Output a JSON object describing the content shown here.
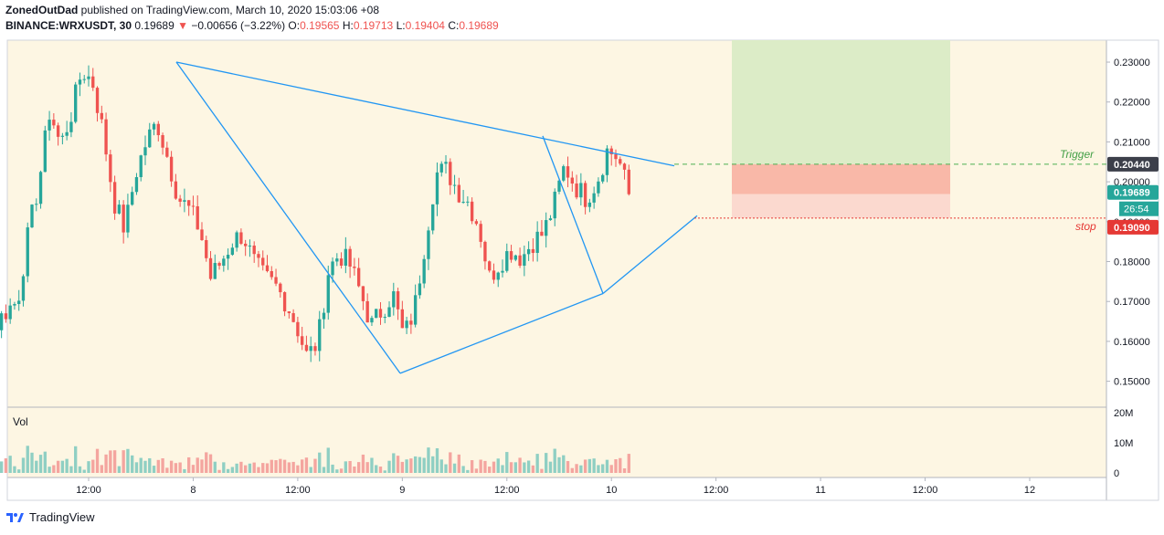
{
  "header": {
    "author": "ZonedOutDad",
    "published": "published on TradingView.com, March 10, 2020 15:03:06 +08",
    "symbol": "BINANCE:WRXUSDT, 30",
    "last": "0.19689",
    "arrow": "▼",
    "change": "−0.00656 (−3.22%)",
    "o_label": "O:",
    "o_value": "0.19565",
    "h_label": "H:",
    "h_value": "0.19713",
    "l_label": "L:",
    "l_value": "0.19404",
    "c_label": "C:",
    "c_value": "0.19689"
  },
  "footer": {
    "brand": "TradingView"
  },
  "colors": {
    "background": "#fdf6e3",
    "up": "#26a69a",
    "down": "#ef5350",
    "trendline": "#2196f3",
    "target_zone": "#dcecc7",
    "stop_zone": "#f9b8a8",
    "trigger_line": "#4caf50",
    "stop_line": "#e53935"
  },
  "chart_data": {
    "type": "candlestick",
    "title": "BINANCE:WRXUSDT, 30",
    "y_ticks": [
      "0.23000",
      "0.22000",
      "0.21000",
      "0.20000",
      "0.19000",
      "0.18000",
      "0.17000",
      "0.16000",
      "0.15000"
    ],
    "x_ticks": [
      "12:00",
      "8",
      "12:00",
      "9",
      "12:00",
      "10",
      "12:00",
      "11",
      "12:00",
      "12"
    ],
    "ylim": [
      0.1435,
      0.2355
    ],
    "grid": false,
    "price_badges": {
      "trigger": "0.20440",
      "current": "0.19689",
      "countdown": "26:54",
      "stop": "0.19090"
    },
    "annotations": {
      "trigger_label": "Trigger",
      "stop_label": "stop"
    },
    "volume": {
      "label": "Vol",
      "ticks": [
        "20M",
        "10M",
        "0"
      ]
    },
    "pattern_points": [
      [
        0.23,
        0.2
      ],
      [
        0.152,
        0.172
      ],
      [
        0.2115,
        0.1915
      ]
    ],
    "approx_path": [
      [
        0.148,
        0.15,
        0.154,
        0.1555,
        0.162,
        0.165,
        0.164,
        0.168,
        0.17,
        0.187,
        0.2,
        0.218,
        0.209,
        0.217,
        0.228
      ],
      [
        0.225,
        0.212,
        0.195,
        0.188,
        0.202,
        0.21,
        0.215,
        0.206,
        0.196,
        0.193,
        0.188,
        0.176,
        0.18,
        0.185,
        0.187
      ],
      [
        0.18,
        0.176,
        0.174,
        0.17,
        0.164,
        0.156,
        0.16,
        0.178,
        0.182,
        0.179,
        0.172,
        0.164,
        0.168,
        0.172,
        0.161
      ],
      [
        0.168,
        0.185,
        0.202,
        0.203,
        0.198,
        0.195,
        0.189,
        0.176,
        0.18,
        0.183,
        0.181,
        0.185,
        0.187,
        0.194,
        0.204
      ],
      [
        0.199,
        0.196,
        0.2,
        0.208,
        0.206,
        0.1969
      ]
    ]
  }
}
